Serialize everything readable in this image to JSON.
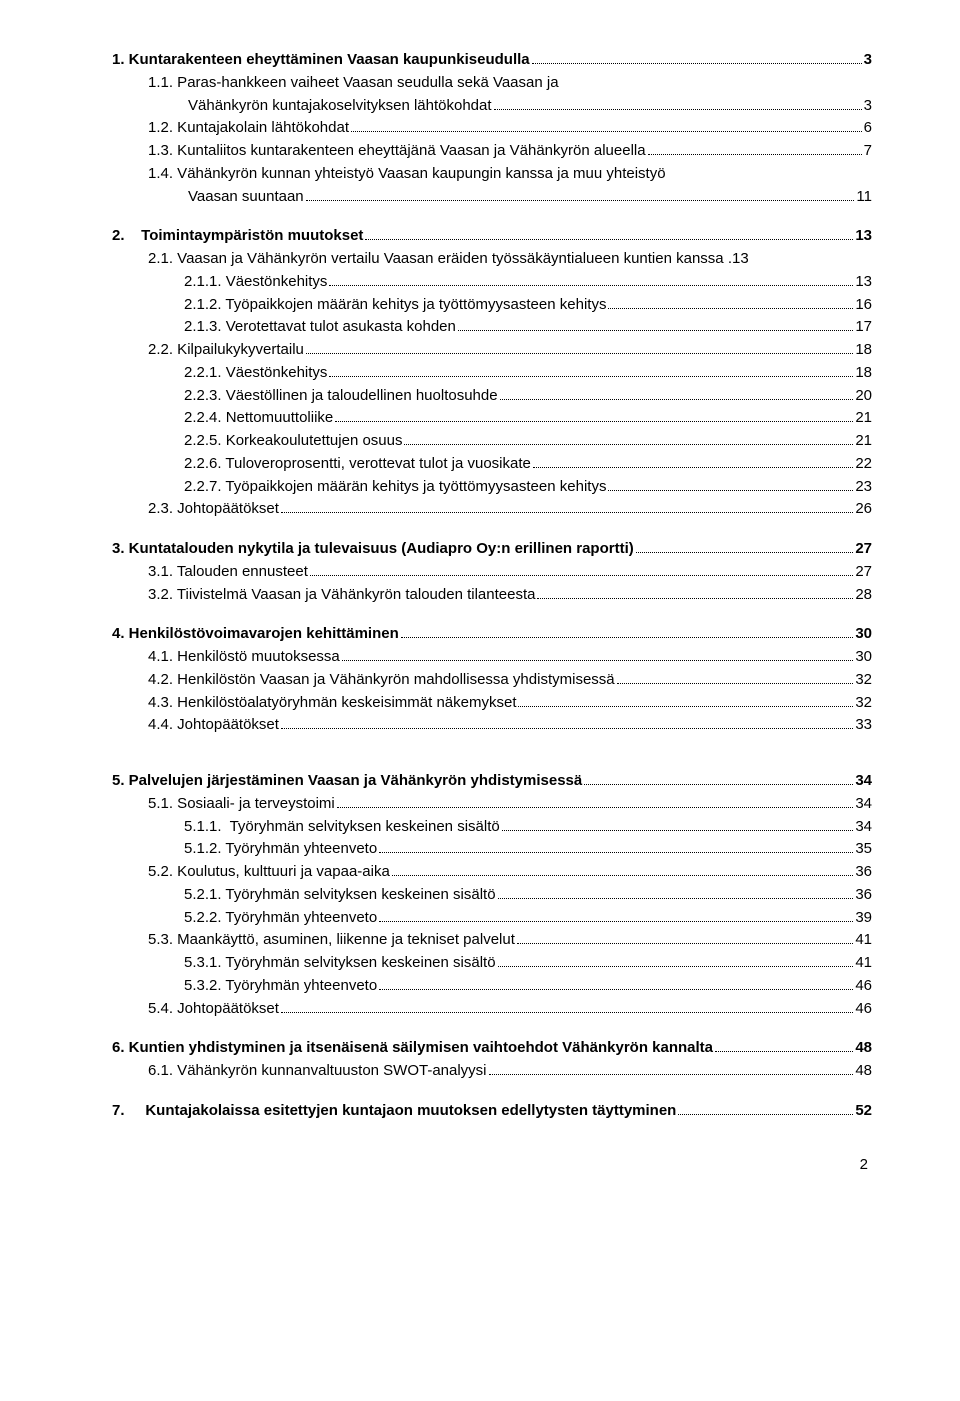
{
  "page_number": "2",
  "blocks": [
    {
      "lines": [
        {
          "level": 0,
          "label": "1. Kuntarakenteen eheyttäminen Vaasan kaupunkiseudulla",
          "page": "3"
        },
        {
          "level": 1,
          "label": "1.1. Paras-hankkeen vaiheet Vaasan seudulla sekä Vaasan ja",
          "page": null
        },
        {
          "level": 1,
          "label": "Vähänkyrön kuntajakoselvityksen lähtökohdat",
          "page": "3",
          "continuation": true,
          "indent_extra": 40
        },
        {
          "level": 1,
          "label": "1.2. Kuntajakolain lähtökohdat",
          "page": "6"
        },
        {
          "level": 1,
          "label": "1.3. Kuntaliitos kuntarakenteen eheyttäjänä Vaasan ja Vähänkyrön alueella",
          "page": "7"
        },
        {
          "level": 1,
          "label": "1.4. Vähänkyrön kunnan yhteistyö Vaasan kaupungin kanssa ja muu yhteistyö",
          "page": null
        },
        {
          "level": 1,
          "label": "Vaasan suuntaan",
          "page": "11",
          "continuation": true,
          "indent_extra": 40
        }
      ]
    },
    {
      "lines": [
        {
          "level": 0,
          "label": "2.    Toimintaympäristön muutokset",
          "page": "13"
        },
        {
          "level": 1,
          "label": "2.1. Vaasan ja Vähänkyrön vertailu Vaasan eräiden työssäkäyntialueen kuntien kanssa .",
          "page": "13",
          "no_dots": true
        },
        {
          "level": 2,
          "label": "2.1.1. Väestönkehitys",
          "page": "13"
        },
        {
          "level": 2,
          "label": "2.1.2. Työpaikkojen määrän kehitys ja työttömyysasteen kehitys",
          "page": "16"
        },
        {
          "level": 2,
          "label": "2.1.3. Verotettavat tulot asukasta kohden",
          "page": "17"
        },
        {
          "level": 1,
          "label": "2.2. Kilpailukykyvertailu",
          "page": "18"
        },
        {
          "level": 2,
          "label": "2.2.1. Väestönkehitys",
          "page": "18"
        },
        {
          "level": 2,
          "label": "2.2.3. Väestöllinen ja taloudellinen huoltosuhde",
          "page": "20"
        },
        {
          "level": 2,
          "label": "2.2.4. Nettomuuttoliike",
          "page": "21"
        },
        {
          "level": 2,
          "label": "2.2.5. Korkeakoulutettujen osuus",
          "page": "21"
        },
        {
          "level": 2,
          "label": "2.2.6. Tuloveroprosentti, verottevat tulot ja vuosikate",
          "page": "22"
        },
        {
          "level": 2,
          "label": "2.2.7. Työpaikkojen määrän kehitys ja työttömyysasteen kehitys",
          "page": "23"
        },
        {
          "level": 1,
          "label": "2.3. Johtopäätökset",
          "page": "26"
        }
      ]
    },
    {
      "lines": [
        {
          "level": 0,
          "label": "3. Kuntatalouden nykytila ja tulevaisuus (Audiapro Oy:n erillinen raportti)",
          "page": "27"
        },
        {
          "level": 1,
          "label": "3.1. Talouden ennusteet",
          "page": "27"
        },
        {
          "level": 1,
          "label": "3.2. Tiivistelmä Vaasan ja Vähänkyrön talouden tilanteesta",
          "page": "28"
        }
      ]
    },
    {
      "lines": [
        {
          "level": 0,
          "label": "4. Henkilöstövoimavarojen kehittäminen",
          "page": "30"
        },
        {
          "level": 1,
          "label": "4.1. Henkilöstö muutoksessa",
          "page": "30"
        },
        {
          "level": 1,
          "label": "4.2. Henkilöstön Vaasan ja Vähänkyrön mahdollisessa yhdistymisessä",
          "page": "32"
        },
        {
          "level": 1,
          "label": "4.3. Henkilöstöalatyöryhmän keskeisimmät näkemykset",
          "page": "32"
        },
        {
          "level": 1,
          "label": "4.4. Johtopäätökset",
          "page": "33"
        }
      ]
    },
    {
      "lines": [
        {
          "level": 0,
          "label": "5. Palvelujen järjestäminen Vaasan ja Vähänkyrön yhdistymisessä",
          "page": "34",
          "pretop": true
        },
        {
          "level": 1,
          "label": "5.1. Sosiaali- ja terveystoimi",
          "page": "34"
        },
        {
          "level": 2,
          "label": "5.1.1.  Työryhmän selvityksen keskeinen sisältö",
          "page": "34"
        },
        {
          "level": 2,
          "label": "5.1.2. Työryhmän yhteenveto",
          "page": "35"
        },
        {
          "level": 1,
          "label": "5.2. Koulutus, kulttuuri ja vapaa-aika",
          "page": "36"
        },
        {
          "level": 2,
          "label": "5.2.1. Työryhmän selvityksen keskeinen sisältö",
          "page": "36"
        },
        {
          "level": 2,
          "label": "5.2.2. Työryhmän yhteenveto",
          "page": "39"
        },
        {
          "level": 1,
          "label": "5.3. Maankäyttö, asuminen, liikenne ja tekniset palvelut",
          "page": "41"
        },
        {
          "level": 2,
          "label": "5.3.1. Työryhmän selvityksen keskeinen sisältö",
          "page": "41"
        },
        {
          "level": 2,
          "label": "5.3.2. Työryhmän yhteenveto",
          "page": "46"
        },
        {
          "level": 1,
          "label": "5.4. Johtopäätökset",
          "page": "46"
        }
      ]
    },
    {
      "lines": [
        {
          "level": 0,
          "label": "6. Kuntien yhdistyminen ja itsenäisenä säilymisen vaihtoehdot Vähänkyrön kannalta",
          "page": "48",
          "tight": true
        },
        {
          "level": 1,
          "label": "6.1. Vähänkyrön kunnanvaltuuston SWOT-analyysi",
          "page": "48"
        }
      ]
    },
    {
      "lines": [
        {
          "level": 0,
          "label": "7.     Kuntajakolaissa esitettyjen kuntajaon muutoksen edellytysten täyttyminen",
          "page": "52"
        }
      ]
    }
  ]
}
